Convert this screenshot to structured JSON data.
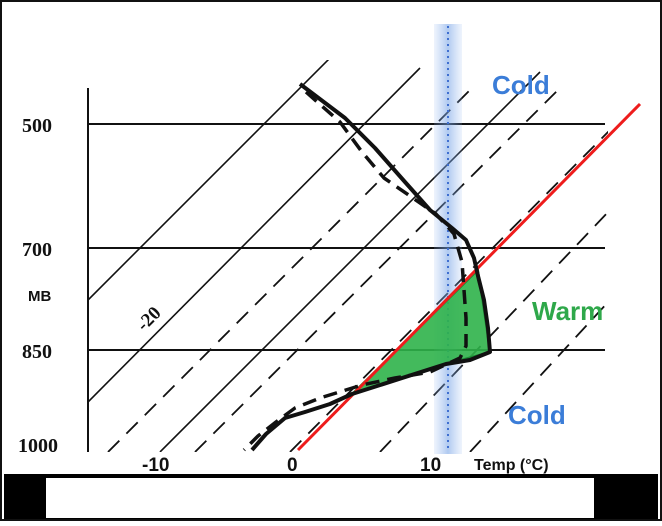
{
  "colors": {
    "frame": "#111111",
    "cold_label": "#3b7dd8",
    "warm_label": "#2ea84a",
    "column": "#6f9ee4",
    "freezing_line": "#ee1c1c",
    "warm_fill": "#2fb34a",
    "lines": "#111111"
  },
  "pressure_axis": {
    "unit": "MB",
    "labels": [
      "500",
      "700",
      "850",
      "1000"
    ]
  },
  "temp_axis": {
    "labels": [
      "-10",
      "0",
      "10"
    ],
    "title": "Temp (°C)"
  },
  "isotherm_label": "-20",
  "regions": {
    "upper": "Cold",
    "middle": "Warm",
    "lower": "Cold"
  }
}
